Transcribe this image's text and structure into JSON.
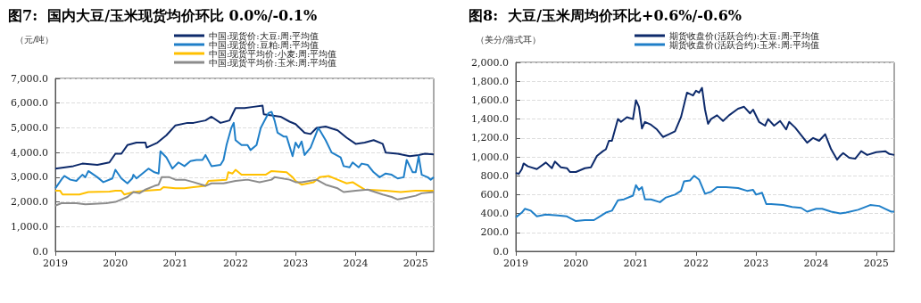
{
  "chart_data": [
    {
      "type": "line",
      "title": "图7:  国内大豆/玉米现货均价环比 0.0%/-0.1%",
      "ylabel": "（元/吨）",
      "legend": "top",
      "grid": "y",
      "marker": "none",
      "line_style": "solid",
      "xlim": [
        2019,
        2025.3
      ],
      "xticks": [
        2019,
        2020,
        2021,
        2022,
        2023,
        2024,
        2025
      ],
      "ylim": [
        0,
        7000
      ],
      "yticks": [
        {
          "value": 0,
          "label": "0.0"
        },
        {
          "value": 1000,
          "label": "1,000.0"
        },
        {
          "value": 2000,
          "label": "2,000.0"
        },
        {
          "value": 3000,
          "label": "3,000.0"
        },
        {
          "value": 4000,
          "label": "4,000.0"
        },
        {
          "value": 5000,
          "label": "5,000.0"
        },
        {
          "value": 6000,
          "label": "6,000.0"
        },
        {
          "value": 7000,
          "label": "7,000.0"
        }
      ],
      "series": [
        {
          "name": "中国:现货价:大豆:周:平均值",
          "color": "#0d2a6b",
          "x": [
            2019.0,
            2019.3,
            2019.45,
            2019.7,
            2019.9,
            2020.0,
            2020.1,
            2020.2,
            2020.35,
            2020.5,
            2020.52,
            2020.7,
            2020.85,
            2021.0,
            2021.2,
            2021.3,
            2021.5,
            2021.6,
            2021.75,
            2021.9,
            2022.0,
            2022.15,
            2022.3,
            2022.45,
            2022.47,
            2022.6,
            2022.75,
            2022.9,
            2023.0,
            2023.15,
            2023.25,
            2023.35,
            2023.5,
            2023.7,
            2023.85,
            2024.0,
            2024.15,
            2024.3,
            2024.45,
            2024.5,
            2024.7,
            2024.9,
            2025.05,
            2025.15,
            2025.3
          ],
          "values": [
            3350,
            3450,
            3550,
            3500,
            3600,
            3950,
            3950,
            4300,
            4400,
            4400,
            4200,
            4400,
            4700,
            5100,
            5200,
            5200,
            5300,
            5450,
            5200,
            5300,
            5800,
            5800,
            5850,
            5900,
            5550,
            5500,
            5450,
            5250,
            5150,
            4800,
            4750,
            5000,
            5050,
            4900,
            4600,
            4350,
            4400,
            4500,
            4350,
            4000,
            3950,
            3850,
            3900,
            3950,
            3920
          ]
        },
        {
          "name": "中国:现货价:豆粕:周:平均值",
          "color": "#1f7fc8",
          "x": [
            2019.0,
            2019.1,
            2019.15,
            2019.25,
            2019.35,
            2019.45,
            2019.5,
            2019.55,
            2019.7,
            2019.8,
            2019.95,
            2020.0,
            2020.1,
            2020.2,
            2020.28,
            2020.3,
            2020.35,
            2020.45,
            2020.55,
            2020.65,
            2020.72,
            2020.75,
            2020.85,
            2020.95,
            2021.05,
            2021.15,
            2021.25,
            2021.35,
            2021.45,
            2021.5,
            2021.6,
            2021.75,
            2021.8,
            2021.85,
            2021.93,
            2021.97,
            2022.0,
            2022.1,
            2022.2,
            2022.25,
            2022.35,
            2022.42,
            2022.55,
            2022.6,
            2022.65,
            2022.7,
            2022.8,
            2022.85,
            2022.95,
            2023.0,
            2023.05,
            2023.1,
            2023.15,
            2023.25,
            2023.38,
            2023.5,
            2023.6,
            2023.75,
            2023.8,
            2023.9,
            2023.95,
            2024.05,
            2024.1,
            2024.2,
            2024.3,
            2024.4,
            2024.5,
            2024.6,
            2024.7,
            2024.8,
            2024.85,
            2024.95,
            2025.0,
            2025.05,
            2025.1,
            2025.2,
            2025.25,
            2025.3
          ],
          "values": [
            2550,
            2900,
            3050,
            2900,
            2850,
            3100,
            3000,
            3250,
            3000,
            2800,
            2950,
            3300,
            2950,
            2750,
            2950,
            3100,
            2950,
            3150,
            3350,
            3200,
            3150,
            4050,
            3800,
            3350,
            3600,
            3450,
            3650,
            3700,
            3700,
            3900,
            3450,
            3500,
            3700,
            4300,
            5000,
            5200,
            4500,
            4300,
            4300,
            4100,
            4300,
            5000,
            5600,
            5650,
            5300,
            4800,
            4650,
            4650,
            3850,
            4400,
            4200,
            4450,
            3900,
            4200,
            5000,
            4500,
            4000,
            3800,
            3450,
            3400,
            3600,
            3400,
            3550,
            3500,
            3200,
            3000,
            3150,
            3100,
            2950,
            3000,
            3700,
            3200,
            3200,
            3850,
            3100,
            3000,
            2900,
            3000
          ]
        },
        {
          "name": "中国:现货平均价:小麦:周:平均值",
          "color": "#ffc000",
          "x": [
            2019.0,
            2019.08,
            2019.12,
            2019.4,
            2019.55,
            2019.9,
            2020.0,
            2020.1,
            2020.15,
            2020.3,
            2020.5,
            2020.75,
            2020.8,
            2021.0,
            2021.15,
            2021.3,
            2021.5,
            2021.55,
            2021.85,
            2021.88,
            2021.95,
            2022.0,
            2022.1,
            2022.3,
            2022.5,
            2022.6,
            2022.85,
            2022.95,
            2023.0,
            2023.1,
            2023.3,
            2023.4,
            2023.55,
            2023.7,
            2023.85,
            2023.95,
            2024.05,
            2024.15,
            2024.5,
            2024.75,
            2025.0,
            2025.3
          ],
          "values": [
            2450,
            2450,
            2300,
            2300,
            2400,
            2420,
            2450,
            2450,
            2300,
            2400,
            2450,
            2500,
            2600,
            2550,
            2550,
            2600,
            2650,
            2850,
            2900,
            3200,
            3150,
            3300,
            3100,
            3100,
            3100,
            3250,
            3200,
            3000,
            2850,
            2700,
            2800,
            3000,
            3050,
            2900,
            2750,
            2800,
            2650,
            2500,
            2450,
            2400,
            2450,
            2450
          ]
        },
        {
          "name": "中国:现货平均价:玉米:周:平均值",
          "color": "#8c8c8c",
          "x": [
            2019.0,
            2019.1,
            2019.35,
            2019.5,
            2019.85,
            2020.0,
            2020.1,
            2020.2,
            2020.3,
            2020.4,
            2020.5,
            2020.65,
            2020.72,
            2020.77,
            2020.9,
            2021.0,
            2021.15,
            2021.3,
            2021.5,
            2021.6,
            2021.8,
            2022.0,
            2022.2,
            2022.4,
            2022.6,
            2022.65,
            2022.9,
            2023.0,
            2023.1,
            2023.35,
            2023.5,
            2023.7,
            2023.8,
            2024.0,
            2024.2,
            2024.45,
            2024.6,
            2024.7,
            2024.8,
            2025.0,
            2025.1,
            2025.3
          ],
          "values": [
            1850,
            1950,
            1950,
            1900,
            1950,
            2000,
            2100,
            2200,
            2400,
            2350,
            2500,
            2650,
            2700,
            3000,
            3000,
            2900,
            2900,
            2800,
            2650,
            2750,
            2750,
            2850,
            2900,
            2800,
            2900,
            3000,
            2900,
            2800,
            2800,
            2900,
            2700,
            2550,
            2400,
            2450,
            2500,
            2300,
            2200,
            2100,
            2150,
            2250,
            2350,
            2400
          ]
        }
      ]
    },
    {
      "type": "line",
      "title": "图8:  大豆/玉米周均价环比+0.6%/-0.6%",
      "ylabel": "（美分/蒲式耳）",
      "legend": "top",
      "grid": "y",
      "marker": "none",
      "line_style": "solid",
      "xlim": [
        2019,
        2025.3
      ],
      "xticks": [
        2019,
        2020,
        2021,
        2022,
        2023,
        2024,
        2025
      ],
      "ylim": [
        0,
        2000
      ],
      "yticks": [
        {
          "value": 0,
          "label": "0.0"
        },
        {
          "value": 200,
          "label": "200.0"
        },
        {
          "value": 400,
          "label": "400.0"
        },
        {
          "value": 600,
          "label": "600.0"
        },
        {
          "value": 800,
          "label": "800.0"
        },
        {
          "value": 1000,
          "label": "1,000.0"
        },
        {
          "value": 1200,
          "label": "1,200.0"
        },
        {
          "value": 1400,
          "label": "1,400.0"
        },
        {
          "value": 1600,
          "label": "1,600.0"
        },
        {
          "value": 1800,
          "label": "1,800.0"
        },
        {
          "value": 2000,
          "label": "2,000.0"
        }
      ],
      "series": [
        {
          "name": "期货收盘价(活跃合约):大豆:周:平均值",
          "color": "#0d2a6b",
          "x": [
            2019.0,
            2019.05,
            2019.1,
            2019.13,
            2019.2,
            2019.35,
            2019.5,
            2019.6,
            2019.65,
            2019.75,
            2019.85,
            2019.9,
            2020.0,
            2020.15,
            2020.25,
            2020.35,
            2020.45,
            2020.5,
            2020.55,
            2020.6,
            2020.7,
            2020.75,
            2020.85,
            2020.95,
            2021.0,
            2021.05,
            2021.1,
            2021.15,
            2021.25,
            2021.35,
            2021.45,
            2021.55,
            2021.65,
            2021.75,
            2021.8,
            2021.85,
            2021.95,
            2022.0,
            2022.05,
            2022.1,
            2022.15,
            2022.2,
            2022.25,
            2022.35,
            2022.45,
            2022.55,
            2022.7,
            2022.8,
            2022.9,
            2022.95,
            2023.05,
            2023.15,
            2023.2,
            2023.3,
            2023.4,
            2023.5,
            2023.55,
            2023.65,
            2023.75,
            2023.85,
            2023.95,
            2024.05,
            2024.15,
            2024.25,
            2024.35,
            2024.4,
            2024.45,
            2024.55,
            2024.65,
            2024.75,
            2024.85,
            2025.0,
            2025.15,
            2025.22,
            2025.3
          ],
          "values": [
            830,
            820,
            870,
            930,
            900,
            870,
            940,
            880,
            950,
            890,
            880,
            840,
            840,
            880,
            890,
            1010,
            1060,
            1080,
            1170,
            1170,
            1400,
            1370,
            1420,
            1400,
            1600,
            1530,
            1300,
            1370,
            1340,
            1290,
            1210,
            1240,
            1270,
            1420,
            1550,
            1680,
            1650,
            1700,
            1680,
            1730,
            1500,
            1350,
            1400,
            1440,
            1380,
            1440,
            1510,
            1530,
            1460,
            1500,
            1370,
            1330,
            1400,
            1330,
            1380,
            1290,
            1370,
            1310,
            1230,
            1150,
            1200,
            1170,
            1240,
            1080,
            970,
            1010,
            1040,
            990,
            980,
            1060,
            1020,
            1050,
            1060,
            1030,
            1020
          ]
        },
        {
          "name": "期货收盘价(活跃合约):玉米:周:平均值",
          "color": "#1f7fc8",
          "x": [
            2019.0,
            2019.1,
            2019.15,
            2019.25,
            2019.35,
            2019.5,
            2019.7,
            2019.85,
            2020.0,
            2020.15,
            2020.3,
            2020.4,
            2020.5,
            2020.6,
            2020.7,
            2020.8,
            2020.95,
            2021.0,
            2021.05,
            2021.1,
            2021.15,
            2021.25,
            2021.4,
            2021.5,
            2021.65,
            2021.75,
            2021.8,
            2021.9,
            2021.97,
            2022.05,
            2022.15,
            2022.25,
            2022.35,
            2022.5,
            2022.7,
            2022.85,
            2022.95,
            2023.0,
            2023.1,
            2023.17,
            2023.25,
            2023.45,
            2023.6,
            2023.75,
            2023.85,
            2024.0,
            2024.1,
            2024.25,
            2024.4,
            2024.5,
            2024.7,
            2024.9,
            2025.05,
            2025.15,
            2025.25,
            2025.3
          ],
          "values": [
            360,
            410,
            450,
            430,
            370,
            390,
            380,
            370,
            320,
            330,
            330,
            370,
            410,
            430,
            540,
            550,
            590,
            700,
            650,
            680,
            550,
            550,
            520,
            570,
            600,
            640,
            740,
            750,
            800,
            760,
            610,
            630,
            680,
            680,
            670,
            640,
            650,
            600,
            620,
            500,
            500,
            490,
            470,
            460,
            420,
            450,
            450,
            420,
            400,
            410,
            440,
            490,
            480,
            450,
            420,
            420
          ]
        }
      ]
    }
  ]
}
